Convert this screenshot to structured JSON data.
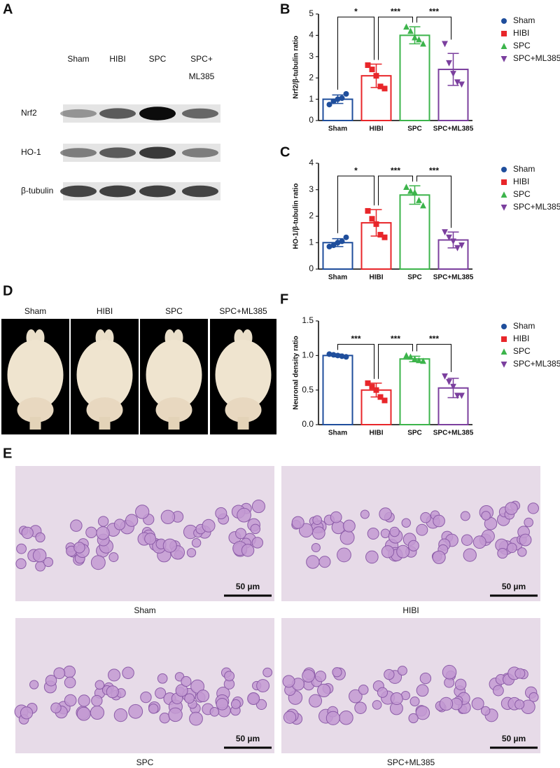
{
  "panel_labels": [
    "A",
    "B",
    "C",
    "D",
    "E",
    "F"
  ],
  "western_blot": {
    "columns": [
      [
        "Sham"
      ],
      [
        "HIBI"
      ],
      [
        "SPC"
      ],
      [
        "SPC+",
        "ML385"
      ]
    ],
    "rows": [
      "Nrf2",
      "HO-1",
      "β-tubulin"
    ]
  },
  "brain_images": {
    "labels": [
      "Sham",
      "HIBI",
      "SPC",
      "SPC+ML385"
    ]
  },
  "histology": {
    "captions": [
      "Sham",
      "HIBI",
      "SPC",
      "SPC+ML385"
    ],
    "scale_bar": "50 µm"
  },
  "chart_data": [
    {
      "type": "bar",
      "ylabel": "Nrf2/β-tubulin ratio",
      "categories": [
        "Sham",
        "HIBI",
        "SPC",
        "SPC+ML385"
      ],
      "colors": [
        "#1f4e9c",
        "#e8262a",
        "#3cb44b",
        "#7b3f9e"
      ],
      "markers": [
        "circle",
        "square",
        "triangle-up",
        "triangle-down"
      ],
      "values": [
        1.0,
        2.1,
        4.0,
        2.4
      ],
      "errors": [
        0.2,
        0.55,
        0.4,
        0.75
      ],
      "points": [
        [
          0.75,
          0.9,
          1.0,
          1.05,
          1.25
        ],
        [
          2.6,
          2.4,
          2.1,
          1.6,
          1.5
        ],
        [
          4.4,
          4.2,
          3.9,
          3.8,
          3.6
        ],
        [
          3.6,
          2.7,
          2.2,
          1.8,
          1.7
        ]
      ],
      "ylim": [
        0,
        5
      ],
      "yticks": [
        0,
        1,
        2,
        3,
        4,
        5
      ],
      "significance": [
        {
          "groups": [
            "Sham",
            "HIBI"
          ],
          "label": "*"
        },
        {
          "groups": [
            "HIBI",
            "SPC"
          ],
          "label": "***"
        },
        {
          "groups": [
            "SPC",
            "SPC+ML385"
          ],
          "label": "***"
        }
      ]
    },
    {
      "type": "bar",
      "ylabel": "HO-1/β-tubulin ratio",
      "categories": [
        "Sham",
        "HIBI",
        "SPC",
        "SPC+ML385"
      ],
      "colors": [
        "#1f4e9c",
        "#e8262a",
        "#3cb44b",
        "#7b3f9e"
      ],
      "markers": [
        "circle",
        "square",
        "triangle-up",
        "triangle-down"
      ],
      "values": [
        1.0,
        1.75,
        2.8,
        1.1
      ],
      "errors": [
        0.15,
        0.5,
        0.35,
        0.3
      ],
      "points": [
        [
          0.85,
          0.9,
          1.0,
          1.05,
          1.2
        ],
        [
          2.2,
          1.9,
          1.7,
          1.3,
          1.2
        ],
        [
          3.1,
          2.95,
          2.9,
          2.6,
          2.4
        ],
        [
          1.4,
          1.2,
          1.05,
          0.8,
          0.9
        ]
      ],
      "ylim": [
        0,
        4
      ],
      "yticks": [
        0,
        1,
        2,
        3,
        4
      ],
      "significance": [
        {
          "groups": [
            "Sham",
            "HIBI"
          ],
          "label": "*"
        },
        {
          "groups": [
            "HIBI",
            "SPC"
          ],
          "label": "***"
        },
        {
          "groups": [
            "SPC",
            "SPC+ML385"
          ],
          "label": "***"
        }
      ]
    },
    {
      "type": "bar",
      "ylabel": "Neuronal density ratio",
      "categories": [
        "Sham",
        "HIBI",
        "SPC",
        "SPC+ML385"
      ],
      "colors": [
        "#1f4e9c",
        "#e8262a",
        "#3cb44b",
        "#7b3f9e"
      ],
      "markers": [
        "circle",
        "square",
        "triangle-up",
        "triangle-down"
      ],
      "values": [
        1.0,
        0.5,
        0.95,
        0.53
      ],
      "errors": [
        0.02,
        0.1,
        0.04,
        0.14
      ],
      "points": [
        [
          1.02,
          1.01,
          1.0,
          0.99,
          0.98
        ],
        [
          0.6,
          0.55,
          0.5,
          0.4,
          0.35
        ],
        [
          1.0,
          0.98,
          0.95,
          0.93,
          0.92
        ],
        [
          0.7,
          0.62,
          0.55,
          0.42,
          0.42
        ]
      ],
      "ylim": [
        0,
        1.5
      ],
      "yticks": [
        {
          "value": 0,
          "label": "0.0"
        },
        0.5,
        {
          "value": 1,
          "label": "1.0"
        },
        1.5
      ],
      "significance": [
        {
          "groups": [
            "Sham",
            "HIBI"
          ],
          "label": "***"
        },
        {
          "groups": [
            "HIBI",
            "SPC"
          ],
          "label": "***"
        },
        {
          "groups": [
            "SPC",
            "SPC+ML385"
          ],
          "label": "***"
        }
      ]
    }
  ]
}
